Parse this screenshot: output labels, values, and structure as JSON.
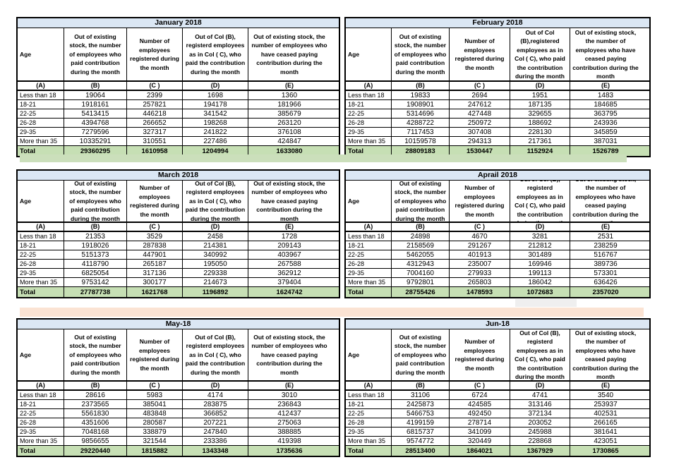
{
  "colors": {
    "title_bg": "#DBE7F4",
    "total_bg": "#C6DFB4",
    "band_green": "#CBDFBB",
    "band_peach": "#FBE3D3",
    "artifact_gray": "#EFEFEF",
    "border": "#000000"
  },
  "column_labels": [
    "(A)",
    "(B)",
    "(C )",
    "(D)",
    "(E)"
  ],
  "tables": [
    {
      "title": "January 2018",
      "headers": [
        "Age",
        "Out of existing stock, the number of employees who paid contribution during the month",
        "Number of employees registered during the month",
        "Out of Col (B), registerd employees as in Col ( C), who paid the contribution during the month",
        "Out of existing stock, the number of  employees who have ceased paying contribution during the month"
      ],
      "rows": [
        [
          "Less than 18",
          "19064",
          "2399",
          "1698",
          "1360"
        ],
        [
          "18-21",
          "1918161",
          "257821",
          "194178",
          "181966"
        ],
        [
          "22-25",
          "5413415",
          "446218",
          "341542",
          "385679"
        ],
        [
          "26-28",
          "4394768",
          "266652",
          "198268",
          "263120"
        ],
        [
          "29-35",
          "7279596",
          "327317",
          "241822",
          "376108"
        ],
        [
          "More than 35",
          "10335291",
          "310551",
          "227486",
          "424847"
        ]
      ],
      "total": [
        "Total",
        "29360295",
        "1610958",
        "1204994",
        "1633080"
      ]
    },
    {
      "title": "February 2018",
      "headers": [
        "Age",
        "Out of existing stock, the number of employees who paid contribution during the month",
        "Number of employees registered during the month",
        "Out of Col (B),registered employees as in Col ( C), who paid the contribution during the month",
        "Out of existing stock, the number of employees  who have ceased paying contribution during the month"
      ],
      "rows": [
        [
          "Less than 18",
          "19833",
          "2694",
          "1951",
          "1483"
        ],
        [
          "18-21",
          "1908901",
          "247612",
          "187135",
          "184685"
        ],
        [
          "22-25",
          "5314696",
          "427448",
          "329655",
          "363795"
        ],
        [
          "26-28",
          "4288722",
          "250972",
          "188692",
          "243936"
        ],
        [
          "29-35",
          "7117453",
          "307408",
          "228130",
          "345859"
        ],
        [
          "More than 35",
          "10159578",
          "294313",
          "217361",
          "387031"
        ]
      ],
      "total": [
        "Total",
        "28809183",
        "1530447",
        "1152924",
        "1526789"
      ]
    },
    {
      "title": "March 2018",
      "headers": [
        "Age",
        "Out of existing stock, the number of employees who paid contribution during the month",
        "Number of employees registered during the month",
        "Out of Col (B), registerd employees as in Col ( C), who paid the contribution during the month",
        "Out of existing stock, the number of  employees who have ceased paying contribution during the month"
      ],
      "rows": [
        [
          "Less than 18",
          "21353",
          "3529",
          "2458",
          "1728"
        ],
        [
          "18-21",
          "1918026",
          "287838",
          "214381",
          "209143"
        ],
        [
          "22-25",
          "5151373",
          "447901",
          "340992",
          "403967"
        ],
        [
          "26-28",
          "4118790",
          "265187",
          "195050",
          "267588"
        ],
        [
          "29-35",
          "6825054",
          "317136",
          "229338",
          "362912"
        ],
        [
          "More than 35",
          "9753142",
          "300177",
          "214673",
          "379404"
        ]
      ],
      "total": [
        "Total",
        "27787738",
        "1621768",
        "1196892",
        "1624742"
      ]
    },
    {
      "title": "Aprail 2018",
      "headers": [
        "Age",
        "Out of existing stock, the number of employees who paid contribution during the month",
        "Number of employees registered during the month",
        "Out of Col (B), registerd employees as in Col ( C), who paid the contribution during the month",
        "Out of existing stock, the number of employees  who have ceased paying contribution during the month"
      ],
      "rows": [
        [
          "Less than 18",
          "24898",
          "4670",
          "3281",
          "2531"
        ],
        [
          "18-21",
          "2158569",
          "291267",
          "212812",
          "238259"
        ],
        [
          "22-25",
          "5462055",
          "401913",
          "301489",
          "516767"
        ],
        [
          "26-28",
          "4312943",
          "235007",
          "169946",
          "389736"
        ],
        [
          "29-35",
          "7004160",
          "279933",
          "199113",
          "573301"
        ],
        [
          "More than 35",
          "9792801",
          "265803",
          "186042",
          "636426"
        ]
      ],
      "total": [
        "Total",
        "28755426",
        "1478593",
        "1072683",
        "2357020"
      ]
    },
    {
      "title": "May-18",
      "headers": [
        "Age",
        "Out of existing stock, the number of employees who paid contribution during the month",
        "Number of employees registered during the month",
        "Out of Col (B), registerd employees as in Col ( C), who paid the contribution during the month",
        "Out of existing stock, the number of  employees who have ceased paying contribution during the month"
      ],
      "rows": [
        [
          "Less than 18",
          "28616",
          "5983",
          "4174",
          "3010"
        ],
        [
          "18-21",
          "2373565",
          "385041",
          "283875",
          "236843"
        ],
        [
          "22-25",
          "5561830",
          "483848",
          "366852",
          "412437"
        ],
        [
          "26-28",
          "4351606",
          "280587",
          "207221",
          "275063"
        ],
        [
          "29-35",
          "7048168",
          "338879",
          "247840",
          "388885"
        ],
        [
          "More than 35",
          "9856655",
          "321544",
          "233386",
          "419398"
        ]
      ],
      "total": [
        "Total",
        "29220440",
        "1815882",
        "1343348",
        "1735636"
      ]
    },
    {
      "title": "Jun-18",
      "headers": [
        "Age",
        "Out of existing stock, the number of employees who paid contribution during the month",
        "Number of employees registered during the month",
        "Out of Col (B), registerd employees as in Col ( C), who paid the contribution during the month",
        "Out of existing stock, the number of employees  who have ceased paying contribution during the month"
      ],
      "rows": [
        [
          "Less than 18",
          "31106",
          "6724",
          "4741",
          "3540"
        ],
        [
          "18-21",
          "2425873",
          "424585",
          "313146",
          "253937"
        ],
        [
          "22-25",
          "5466753",
          "492450",
          "372134",
          "402531"
        ],
        [
          "26-28",
          "4199159",
          "278714",
          "203052",
          "266165"
        ],
        [
          "29-35",
          "6815737",
          "341099",
          "245988",
          "381641"
        ],
        [
          "More than 35",
          "9574772",
          "320449",
          "228868",
          "423051"
        ]
      ],
      "total": [
        "Total",
        "28513400",
        "1864021",
        "1367929",
        "1730865"
      ]
    }
  ]
}
